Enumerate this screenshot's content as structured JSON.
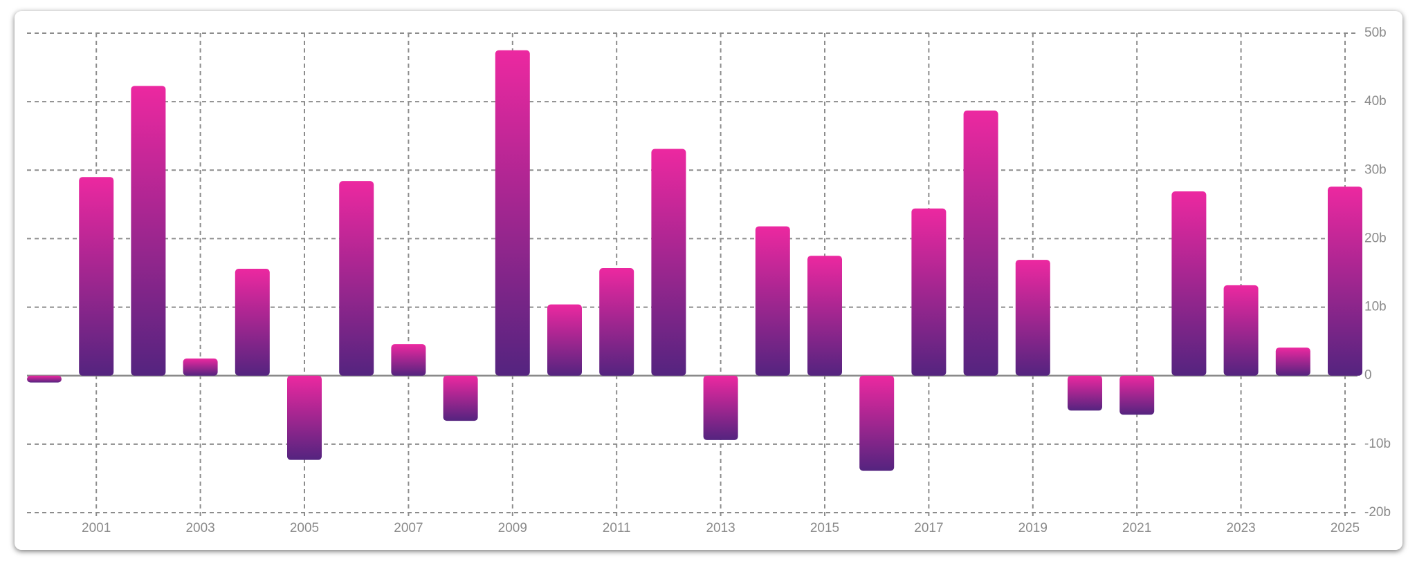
{
  "chart_data": {
    "type": "bar",
    "categories": [
      null,
      "2001",
      null,
      "2003",
      null,
      "2005",
      null,
      "2007",
      null,
      "2009",
      null,
      "2011",
      null,
      "2013",
      null,
      "2015",
      null,
      "2017",
      null,
      "2019",
      null,
      "2021",
      null,
      "2023",
      null,
      "2025"
    ],
    "values": [
      -1,
      29,
      42.3,
      2.5,
      15.6,
      -12.3,
      28.4,
      4.6,
      -6.6,
      47.5,
      10.4,
      15.7,
      33.1,
      -9.4,
      21.8,
      17.5,
      -13.9,
      24.4,
      38.7,
      16.9,
      -5.1,
      -5.7,
      26.9,
      13.2,
      4.1,
      27.6
    ],
    "gradient": {
      "top": "#ec28a0",
      "bottom": "#54247f"
    },
    "ylim": [
      -20,
      50
    ],
    "yticks": [
      {
        "value": -20,
        "label": "-20b"
      },
      {
        "value": -10,
        "label": "-10b"
      },
      0,
      {
        "value": 10,
        "label": "10b"
      },
      {
        "value": 20,
        "label": "20b"
      },
      {
        "value": 30,
        "label": "30b"
      },
      {
        "value": 40,
        "label": "40b"
      },
      {
        "value": 50,
        "label": "50b"
      }
    ],
    "y_axis_side": "right",
    "grid": true
  }
}
